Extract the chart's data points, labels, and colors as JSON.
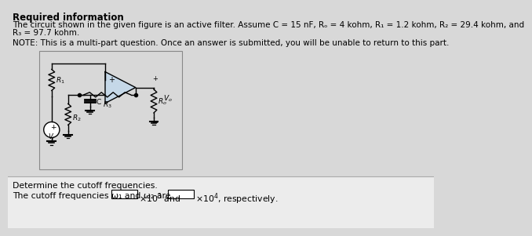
{
  "title": "Required information",
  "paragraph1": "The circuit shown in the given figure is an active filter. Assume C = 15 nF, Rₒ = 4 kohm, R₁ = 1.2 kohm, R₂ = 29.4 kohm, and",
  "paragraph1b": "R₃ = 97.7 kohm.",
  "note": "NOTE: This is a multi-part question. Once an answer is submitted, you will be unable to return to this part.",
  "question": "Determine the cutoff frequencies.",
  "answer_line": "The cutoff frequencies ω₁ and ω₂ are",
  "bg_color": "#d8d8d8",
  "bg_color_bottom": "#ececec",
  "text_color": "#000000",
  "circuit_bg": "#c5d8e8",
  "circuit_border": "#888888"
}
